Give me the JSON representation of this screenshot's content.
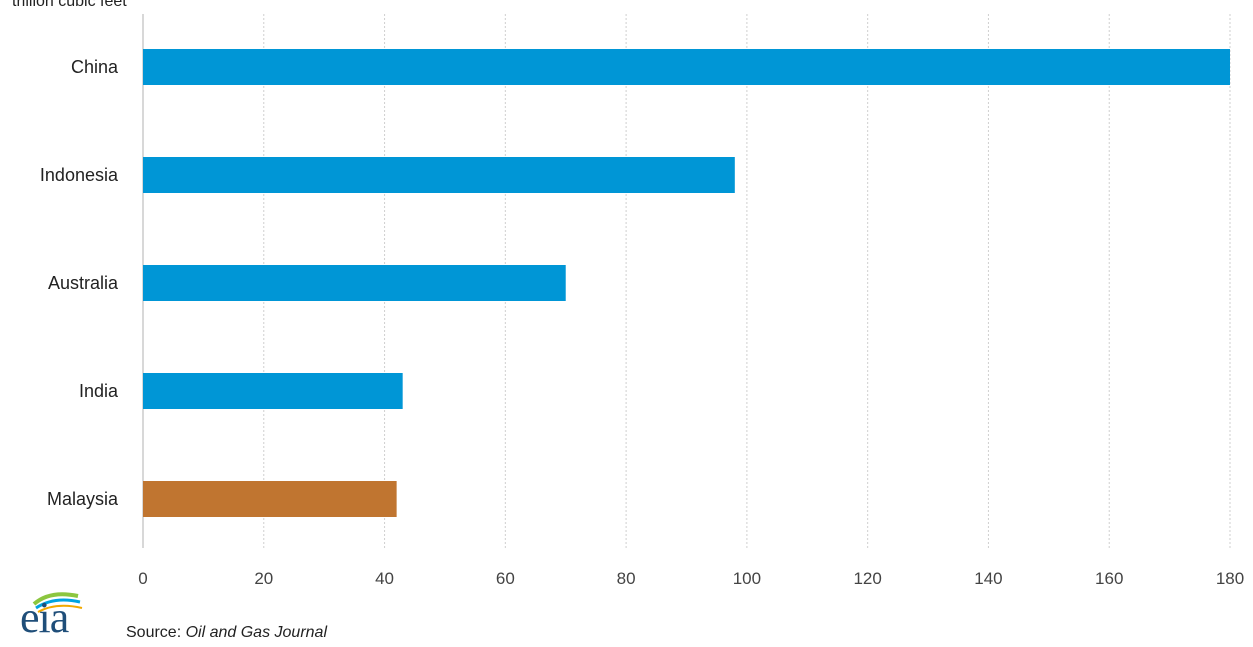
{
  "chart_data": {
    "type": "bar",
    "orientation": "horizontal",
    "unit_label": "trillion cubic feet",
    "categories": [
      "China",
      "Indonesia",
      "Australia",
      "India",
      "Malaysia"
    ],
    "values": [
      180,
      98,
      70,
      43,
      42
    ],
    "bar_colors": [
      "#0096d6",
      "#0096d6",
      "#0096d6",
      "#0096d6",
      "#c07530"
    ],
    "xlim": [
      0,
      180
    ],
    "xticks": [
      0,
      20,
      40,
      60,
      80,
      100,
      120,
      140,
      160,
      180
    ],
    "grid": true
  },
  "footer": {
    "logo_text": "eia",
    "source_prefix": "Source: ",
    "source_name": "Oil and Gas Journal"
  }
}
